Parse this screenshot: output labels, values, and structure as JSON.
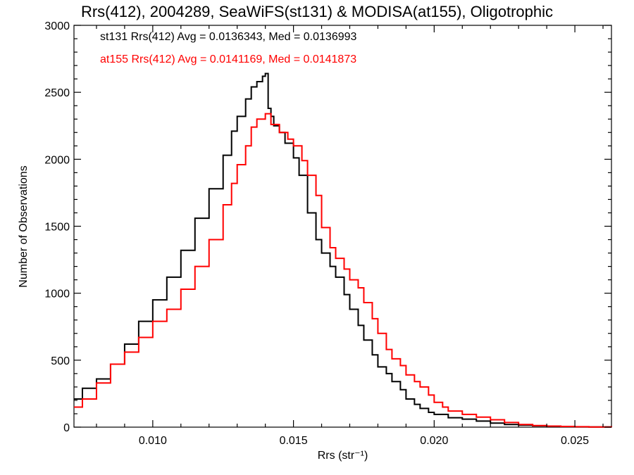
{
  "chart_data": {
    "type": "line",
    "style": "step-histogram",
    "title": "Rrs(412), 2004289, SeaWiFS(st131) & MODISA(at155), Oligotrophic",
    "xlabel": "Rrs (str⁻¹)",
    "ylabel": "Number of Observations",
    "xlim": [
      0.0072,
      0.0263
    ],
    "ylim": [
      0,
      3000
    ],
    "xticks": [
      "0.010",
      "0.015",
      "0.020",
      "0.025"
    ],
    "yticks": [
      "0",
      "500",
      "1000",
      "1500",
      "2000",
      "2500",
      "3000"
    ],
    "grid": false,
    "annotations": [
      {
        "text": "st131 Rrs(412) Avg = 0.0136343, Med = 0.0136993",
        "color": "#000000"
      },
      {
        "text": "at155 Rrs(412) Avg = 0.0141169, Med = 0.0141873",
        "color": "#ff0000"
      }
    ],
    "series": [
      {
        "name": "st131",
        "color": "#000000",
        "x": [
          0.0072,
          0.0075,
          0.008,
          0.0085,
          0.009,
          0.0095,
          0.01,
          0.0105,
          0.011,
          0.0115,
          0.012,
          0.0125,
          0.0128,
          0.013,
          0.0133,
          0.0135,
          0.0137,
          0.0139,
          0.014,
          0.0141,
          0.0142,
          0.0143,
          0.0145,
          0.0147,
          0.015,
          0.0152,
          0.0155,
          0.0158,
          0.016,
          0.0163,
          0.0165,
          0.0168,
          0.017,
          0.0173,
          0.0175,
          0.0178,
          0.018,
          0.0183,
          0.0185,
          0.0188,
          0.019,
          0.0193,
          0.0195,
          0.0198,
          0.02,
          0.0205,
          0.021,
          0.0215,
          0.022,
          0.0225,
          0.023,
          0.0235,
          0.024,
          0.0245,
          0.025,
          0.0255,
          0.0263
        ],
        "values": [
          210,
          290,
          360,
          470,
          620,
          790,
          950,
          1120,
          1320,
          1560,
          1780,
          2030,
          2210,
          2320,
          2450,
          2540,
          2580,
          2620,
          2640,
          2380,
          2320,
          2250,
          2200,
          2120,
          2010,
          1880,
          1600,
          1400,
          1300,
          1200,
          1120,
          990,
          880,
          760,
          650,
          540,
          450,
          400,
          340,
          280,
          210,
          170,
          140,
          110,
          95,
          70,
          60,
          45,
          30,
          20,
          15,
          10,
          6,
          4,
          2,
          1,
          0
        ]
      },
      {
        "name": "at155",
        "color": "#ff0000",
        "x": [
          0.0072,
          0.0075,
          0.008,
          0.0085,
          0.009,
          0.0095,
          0.01,
          0.0105,
          0.011,
          0.0115,
          0.012,
          0.0125,
          0.0128,
          0.013,
          0.0133,
          0.0135,
          0.0137,
          0.014,
          0.0142,
          0.0145,
          0.0148,
          0.015,
          0.0153,
          0.0155,
          0.0158,
          0.016,
          0.0163,
          0.0165,
          0.0168,
          0.017,
          0.0173,
          0.0175,
          0.0178,
          0.018,
          0.0183,
          0.0185,
          0.0188,
          0.019,
          0.0193,
          0.0195,
          0.0198,
          0.02,
          0.0203,
          0.0205,
          0.021,
          0.0215,
          0.022,
          0.0225,
          0.023,
          0.0235,
          0.024,
          0.0245,
          0.025,
          0.0255,
          0.0263
        ],
        "values": [
          150,
          210,
          330,
          470,
          560,
          670,
          790,
          880,
          1030,
          1200,
          1400,
          1660,
          1820,
          1960,
          2100,
          2240,
          2300,
          2340,
          2260,
          2200,
          2150,
          2100,
          1990,
          1880,
          1730,
          1490,
          1340,
          1260,
          1180,
          1100,
          1040,
          930,
          810,
          700,
          580,
          510,
          460,
          390,
          340,
          300,
          240,
          185,
          150,
          120,
          95,
          75,
          55,
          35,
          20,
          12,
          8,
          5,
          3,
          1,
          0
        ]
      }
    ]
  }
}
